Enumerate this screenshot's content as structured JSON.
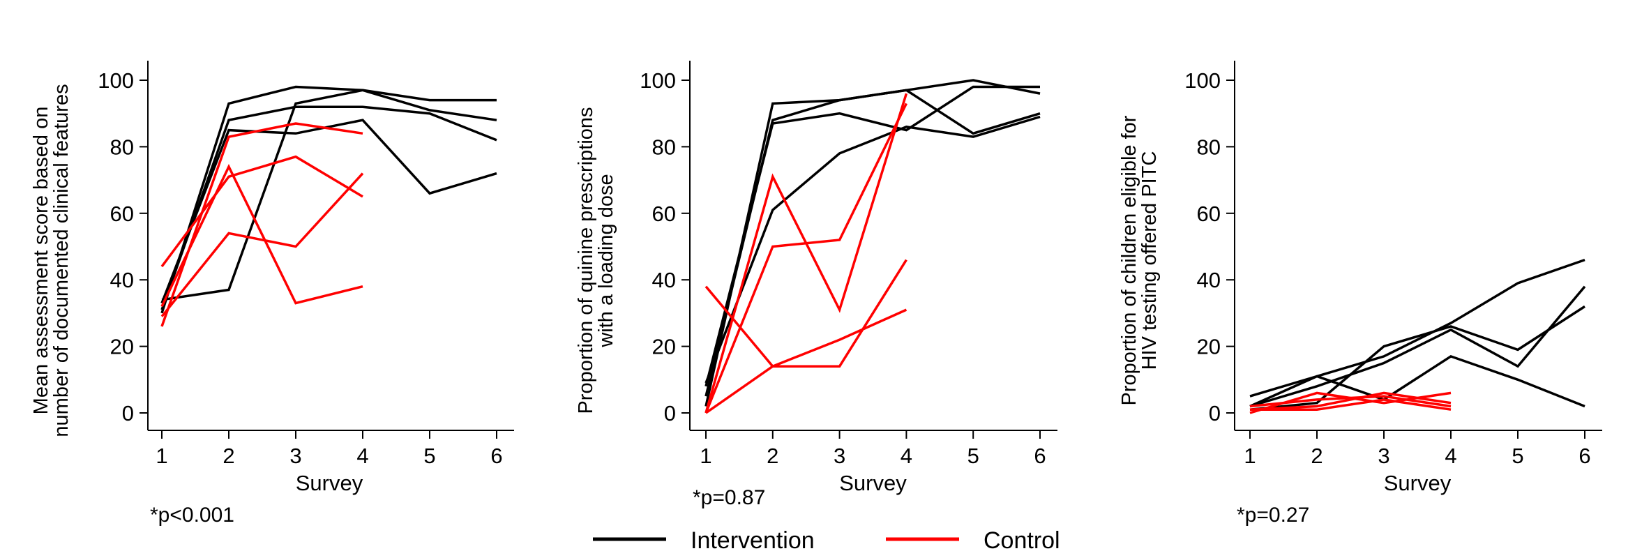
{
  "colors": {
    "intervention": "#000000",
    "control": "#ff0000",
    "axis": "#000000"
  },
  "legend": {
    "placement": "bottom-center",
    "items": [
      {
        "label": "Intervention",
        "color": "#000000"
      },
      {
        "label": "Control",
        "color": "#ff0000"
      }
    ]
  },
  "chart_data": [
    {
      "type": "line",
      "ylabel": [
        "Mean assessment score based on",
        "number of documented clinical features"
      ],
      "xlabel": "Survey",
      "note": "*p<0.001",
      "x_ticks": [
        1,
        2,
        3,
        4,
        5,
        6
      ],
      "y_ticks": [
        0,
        20,
        40,
        60,
        80,
        100
      ],
      "xlim": [
        0.8,
        6.2
      ],
      "ylim": [
        -5,
        105
      ],
      "grid": false,
      "series": [
        {
          "group": "intervention",
          "x": [
            1,
            2,
            3,
            4,
            5,
            6
          ],
          "values": [
            30,
            93,
            98,
            97,
            94,
            94
          ]
        },
        {
          "group": "intervention",
          "x": [
            1,
            2,
            3,
            4,
            5,
            6
          ],
          "values": [
            31,
            88,
            92,
            92,
            90,
            82
          ]
        },
        {
          "group": "intervention",
          "x": [
            1,
            2,
            3,
            4,
            5,
            6
          ],
          "values": [
            33,
            85,
            84,
            88,
            66,
            72
          ]
        },
        {
          "group": "intervention",
          "x": [
            1,
            2,
            3,
            4,
            5,
            6
          ],
          "values": [
            34,
            37,
            93,
            97,
            91,
            88
          ]
        },
        {
          "group": "control",
          "x": [
            1,
            2,
            3,
            4
          ],
          "values": [
            44,
            71,
            77,
            65
          ]
        },
        {
          "group": "control",
          "x": [
            1,
            2,
            3,
            4
          ],
          "values": [
            26,
            83,
            87,
            84
          ]
        },
        {
          "group": "control",
          "x": [
            1,
            2,
            3,
            4
          ],
          "values": [
            32,
            74,
            33,
            38
          ]
        },
        {
          "group": "control",
          "x": [
            1,
            2,
            3,
            4
          ],
          "values": [
            29,
            54,
            50,
            72
          ]
        }
      ]
    },
    {
      "type": "line",
      "ylabel": [
        "Proportion of quinine prescriptions",
        "with a loading dose"
      ],
      "xlabel": "Survey",
      "note": "*p=0.87",
      "x_ticks": [
        1,
        2,
        3,
        4,
        5,
        6
      ],
      "y_ticks": [
        0,
        20,
        40,
        60,
        80,
        100
      ],
      "xlim": [
        0.8,
        6.2
      ],
      "ylim": [
        -5,
        105
      ],
      "grid": false,
      "series": [
        {
          "group": "intervention",
          "x": [
            1,
            2,
            3,
            4,
            5,
            6
          ],
          "values": [
            2,
            93,
            94,
            97,
            100,
            96
          ]
        },
        {
          "group": "intervention",
          "x": [
            1,
            2,
            3,
            4,
            5,
            6
          ],
          "values": [
            5,
            88,
            94,
            97,
            84,
            90
          ]
        },
        {
          "group": "intervention",
          "x": [
            1,
            2,
            3,
            4,
            5,
            6
          ],
          "values": [
            8,
            87,
            90,
            85,
            98,
            98
          ]
        },
        {
          "group": "intervention",
          "x": [
            1,
            2,
            3,
            4,
            5,
            6
          ],
          "values": [
            9,
            61,
            78,
            86,
            83,
            89
          ]
        },
        {
          "group": "control",
          "x": [
            1,
            2,
            3,
            4
          ],
          "values": [
            38,
            14,
            14,
            46
          ]
        },
        {
          "group": "control",
          "x": [
            1,
            2,
            3,
            4
          ],
          "values": [
            0,
            71,
            31,
            96
          ]
        },
        {
          "group": "control",
          "x": [
            1,
            2,
            3,
            4
          ],
          "values": [
            0,
            50,
            52,
            93
          ]
        },
        {
          "group": "control",
          "x": [
            1,
            2,
            3,
            4
          ],
          "values": [
            0,
            14,
            22,
            31
          ]
        }
      ]
    },
    {
      "type": "line",
      "ylabel": [
        "Proportion of children eligible for",
        "HIV testing offered PITC"
      ],
      "xlabel": "Survey",
      "note": "*p=0.27",
      "x_ticks": [
        1,
        2,
        3,
        4,
        5,
        6
      ],
      "y_ticks": [
        0,
        20,
        40,
        60,
        80,
        100
      ],
      "xlim": [
        0.8,
        6.2
      ],
      "ylim": [
        -5,
        105
      ],
      "grid": false,
      "series": [
        {
          "group": "intervention",
          "x": [
            1,
            2,
            3,
            4,
            5,
            6
          ],
          "values": [
            5,
            11,
            17,
            27,
            39,
            46
          ]
        },
        {
          "group": "intervention",
          "x": [
            1,
            2,
            3,
            4,
            5,
            6
          ],
          "values": [
            2,
            8,
            15,
            25,
            14,
            38
          ]
        },
        {
          "group": "intervention",
          "x": [
            1,
            2,
            3,
            4,
            5,
            6
          ],
          "values": [
            1,
            3,
            20,
            26,
            19,
            32
          ]
        },
        {
          "group": "intervention",
          "x": [
            1,
            2,
            3,
            4,
            5,
            6
          ],
          "values": [
            2,
            11,
            4,
            17,
            10,
            2
          ]
        },
        {
          "group": "control",
          "x": [
            1,
            2,
            3,
            4
          ],
          "values": [
            0,
            6,
            3,
            6
          ]
        },
        {
          "group": "control",
          "x": [
            1,
            2,
            3,
            4
          ],
          "values": [
            1,
            2,
            6,
            3
          ]
        },
        {
          "group": "control",
          "x": [
            1,
            2,
            3,
            4
          ],
          "values": [
            2,
            4,
            5,
            2
          ]
        },
        {
          "group": "control",
          "x": [
            1,
            2,
            3,
            4
          ],
          "values": [
            1,
            1,
            4,
            1
          ]
        }
      ]
    }
  ]
}
